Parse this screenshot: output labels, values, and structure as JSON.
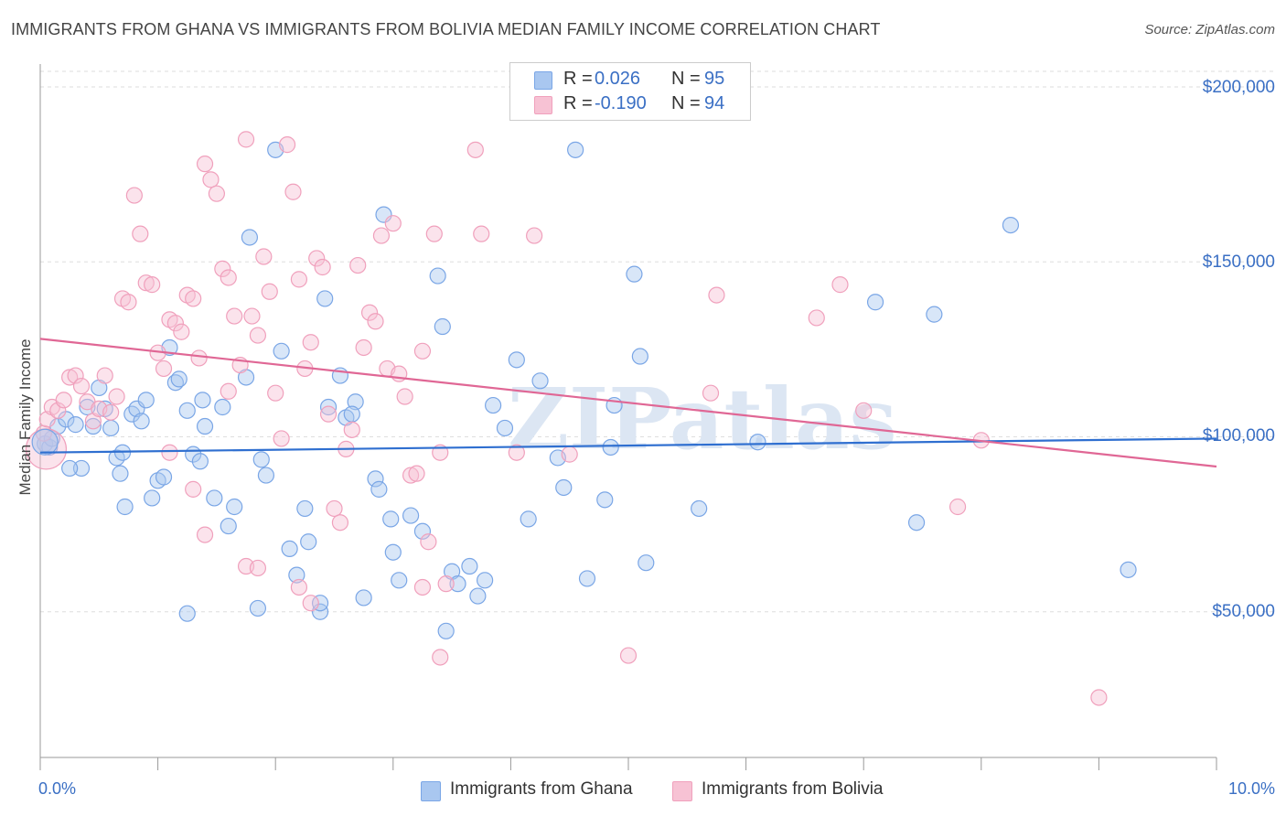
{
  "title": "IMMIGRANTS FROM GHANA VS IMMIGRANTS FROM BOLIVIA MEDIAN FAMILY INCOME CORRELATION CHART",
  "source": "Source: ZipAtlas.com",
  "watermark": "ZIPatlas",
  "legend_box": {
    "rows": [
      {
        "r_label": "R =",
        "r_value": "0.026",
        "n_label": "N =",
        "n_value": "95"
      },
      {
        "r_label": "R =",
        "r_value": "-0.190",
        "n_label": "N =",
        "n_value": "94"
      }
    ]
  },
  "chart_data": {
    "type": "scatter",
    "title": "IMMIGRANTS FROM GHANA VS IMMIGRANTS FROM BOLIVIA MEDIAN FAMILY INCOME CORRELATION CHART",
    "xlabel": "",
    "ylabel": "Median Family Income",
    "xlim": [
      0,
      10
    ],
    "ylim": [
      0,
      205000
    ],
    "x_tick_labels": [
      "0.0%",
      "10.0%"
    ],
    "y_ticks": [
      50000,
      100000,
      150000,
      200000
    ],
    "y_tick_labels": [
      "$50,000",
      "$100,000",
      "$150,000",
      "$200,000"
    ],
    "grid": true,
    "legend_position": "bottom",
    "series": [
      {
        "name": "Immigrants from Ghana",
        "color": "#7aa6e6",
        "fill": "#a9c7f0",
        "trend_color": "#2f6fd0",
        "R": 0.026,
        "N": 95,
        "trend": {
          "x0": 0.0,
          "y0": 95500,
          "x1": 10.0,
          "y1": 99500
        },
        "points": [
          [
            0.04,
            98000
          ],
          [
            0.08,
            97000
          ],
          [
            0.1,
            99500
          ],
          [
            0.15,
            103000
          ],
          [
            0.22,
            105000
          ],
          [
            0.3,
            103500
          ],
          [
            0.35,
            91000
          ],
          [
            0.4,
            108500
          ],
          [
            0.45,
            103000
          ],
          [
            0.55,
            108000
          ],
          [
            0.6,
            102500
          ],
          [
            0.5,
            114000
          ],
          [
            0.65,
            94000
          ],
          [
            0.68,
            89500
          ],
          [
            0.72,
            80000
          ],
          [
            0.78,
            106500
          ],
          [
            0.82,
            108000
          ],
          [
            0.86,
            104500
          ],
          [
            0.9,
            110500
          ],
          [
            0.95,
            82500
          ],
          [
            1.0,
            87500
          ],
          [
            1.05,
            88500
          ],
          [
            1.1,
            125500
          ],
          [
            1.15,
            115500
          ],
          [
            1.18,
            116500
          ],
          [
            1.25,
            107500
          ],
          [
            1.3,
            95000
          ],
          [
            1.36,
            93000
          ],
          [
            1.38,
            110500
          ],
          [
            1.4,
            103000
          ],
          [
            1.48,
            82500
          ],
          [
            1.55,
            108500
          ],
          [
            1.6,
            74500
          ],
          [
            1.65,
            80000
          ],
          [
            1.75,
            117000
          ],
          [
            1.78,
            157000
          ],
          [
            1.88,
            93500
          ],
          [
            1.92,
            89000
          ],
          [
            2.0,
            182000
          ],
          [
            2.05,
            124500
          ],
          [
            2.12,
            68000
          ],
          [
            2.18,
            60500
          ],
          [
            2.25,
            79500
          ],
          [
            2.28,
            70000
          ],
          [
            2.38,
            50000
          ],
          [
            2.42,
            139500
          ],
          [
            2.45,
            108500
          ],
          [
            2.55,
            117500
          ],
          [
            2.6,
            105500
          ],
          [
            2.68,
            110000
          ],
          [
            2.75,
            54000
          ],
          [
            2.85,
            88000
          ],
          [
            2.88,
            85000
          ],
          [
            2.92,
            163500
          ],
          [
            2.98,
            76500
          ],
          [
            3.0,
            67000
          ],
          [
            3.05,
            59000
          ],
          [
            3.15,
            77500
          ],
          [
            3.25,
            73000
          ],
          [
            3.38,
            146000
          ],
          [
            3.42,
            131500
          ],
          [
            3.5,
            61500
          ],
          [
            3.55,
            58000
          ],
          [
            3.65,
            63000
          ],
          [
            3.72,
            54500
          ],
          [
            3.78,
            59000
          ],
          [
            3.85,
            109000
          ],
          [
            3.95,
            102500
          ],
          [
            4.05,
            122000
          ],
          [
            4.15,
            76500
          ],
          [
            4.25,
            116000
          ],
          [
            4.4,
            94000
          ],
          [
            4.45,
            85500
          ],
          [
            4.55,
            182000
          ],
          [
            4.65,
            59500
          ],
          [
            4.8,
            82000
          ],
          [
            4.85,
            97000
          ],
          [
            4.88,
            109000
          ],
          [
            5.05,
            146500
          ],
          [
            5.1,
            123000
          ],
          [
            5.15,
            64000
          ],
          [
            5.6,
            79500
          ],
          [
            6.1,
            98500
          ],
          [
            7.1,
            138500
          ],
          [
            7.45,
            75500
          ],
          [
            7.6,
            135000
          ],
          [
            8.25,
            160500
          ],
          [
            9.25,
            62000
          ],
          [
            0.7,
            95500
          ],
          [
            0.25,
            91000
          ],
          [
            1.25,
            49500
          ],
          [
            1.85,
            51000
          ],
          [
            2.38,
            52500
          ],
          [
            3.45,
            44500
          ],
          [
            2.65,
            106500
          ]
        ]
      },
      {
        "name": "Immigrants from Bolivia",
        "color": "#f0a0bc",
        "fill": "#f7c2d4",
        "trend_color": "#e06795",
        "R": -0.19,
        "N": 94,
        "trend": {
          "x0": 0.0,
          "y0": 128000,
          "x1": 10.0,
          "y1": 91500
        },
        "points": [
          [
            0.03,
            101000
          ],
          [
            0.06,
            105000
          ],
          [
            0.1,
            108500
          ],
          [
            0.15,
            107500
          ],
          [
            0.2,
            110500
          ],
          [
            0.25,
            117000
          ],
          [
            0.3,
            117500
          ],
          [
            0.35,
            114500
          ],
          [
            0.4,
            110000
          ],
          [
            0.45,
            104500
          ],
          [
            0.5,
            108000
          ],
          [
            0.55,
            117500
          ],
          [
            0.6,
            107000
          ],
          [
            0.65,
            111500
          ],
          [
            0.7,
            139500
          ],
          [
            0.75,
            138500
          ],
          [
            0.8,
            169000
          ],
          [
            0.85,
            158000
          ],
          [
            0.9,
            144000
          ],
          [
            0.95,
            143500
          ],
          [
            1.0,
            124000
          ],
          [
            1.05,
            119500
          ],
          [
            1.1,
            133500
          ],
          [
            1.15,
            132500
          ],
          [
            1.2,
            130000
          ],
          [
            1.25,
            140500
          ],
          [
            1.3,
            139500
          ],
          [
            1.35,
            122500
          ],
          [
            1.4,
            178000
          ],
          [
            1.45,
            173500
          ],
          [
            1.5,
            169500
          ],
          [
            1.55,
            148000
          ],
          [
            1.6,
            145500
          ],
          [
            1.65,
            134500
          ],
          [
            1.7,
            120500
          ],
          [
            1.75,
            185000
          ],
          [
            1.8,
            134500
          ],
          [
            1.85,
            129000
          ],
          [
            1.9,
            151500
          ],
          [
            1.95,
            141500
          ],
          [
            2.0,
            112500
          ],
          [
            2.05,
            99500
          ],
          [
            2.1,
            183500
          ],
          [
            2.15,
            170000
          ],
          [
            2.2,
            145000
          ],
          [
            2.25,
            119500
          ],
          [
            2.3,
            127000
          ],
          [
            2.35,
            151000
          ],
          [
            2.4,
            148500
          ],
          [
            2.45,
            106500
          ],
          [
            2.5,
            79500
          ],
          [
            2.55,
            75500
          ],
          [
            2.6,
            96500
          ],
          [
            2.65,
            102000
          ],
          [
            2.7,
            149000
          ],
          [
            2.75,
            125500
          ],
          [
            2.8,
            135500
          ],
          [
            2.85,
            133000
          ],
          [
            2.9,
            157500
          ],
          [
            2.95,
            119500
          ],
          [
            3.0,
            161000
          ],
          [
            3.05,
            118000
          ],
          [
            3.1,
            111500
          ],
          [
            3.15,
            89000
          ],
          [
            3.2,
            89500
          ],
          [
            3.25,
            124500
          ],
          [
            3.3,
            70000
          ],
          [
            3.35,
            158000
          ],
          [
            3.4,
            95500
          ],
          [
            3.45,
            58000
          ],
          [
            3.7,
            182000
          ],
          [
            3.75,
            158000
          ],
          [
            4.05,
            95500
          ],
          [
            4.2,
            157500
          ],
          [
            4.5,
            95000
          ],
          [
            5.0,
            37500
          ],
          [
            5.7,
            112500
          ],
          [
            5.75,
            140500
          ],
          [
            6.6,
            134000
          ],
          [
            6.8,
            143500
          ],
          [
            7.0,
            107500
          ],
          [
            7.8,
            80000
          ],
          [
            8.0,
            99000
          ],
          [
            9.0,
            25500
          ],
          [
            1.3,
            85000
          ],
          [
            1.4,
            72000
          ],
          [
            1.6,
            113000
          ],
          [
            1.75,
            63000
          ],
          [
            1.85,
            62500
          ],
          [
            2.2,
            57000
          ],
          [
            2.3,
            52500
          ],
          [
            3.25,
            57000
          ],
          [
            3.4,
            37000
          ],
          [
            1.1,
            95500
          ]
        ]
      }
    ]
  },
  "bottom_legend": [
    {
      "label": "Immigrants from Ghana",
      "color": "#a9c7f0"
    },
    {
      "label": "Immigrants from Bolivia",
      "color": "#f7c2d4"
    }
  ]
}
